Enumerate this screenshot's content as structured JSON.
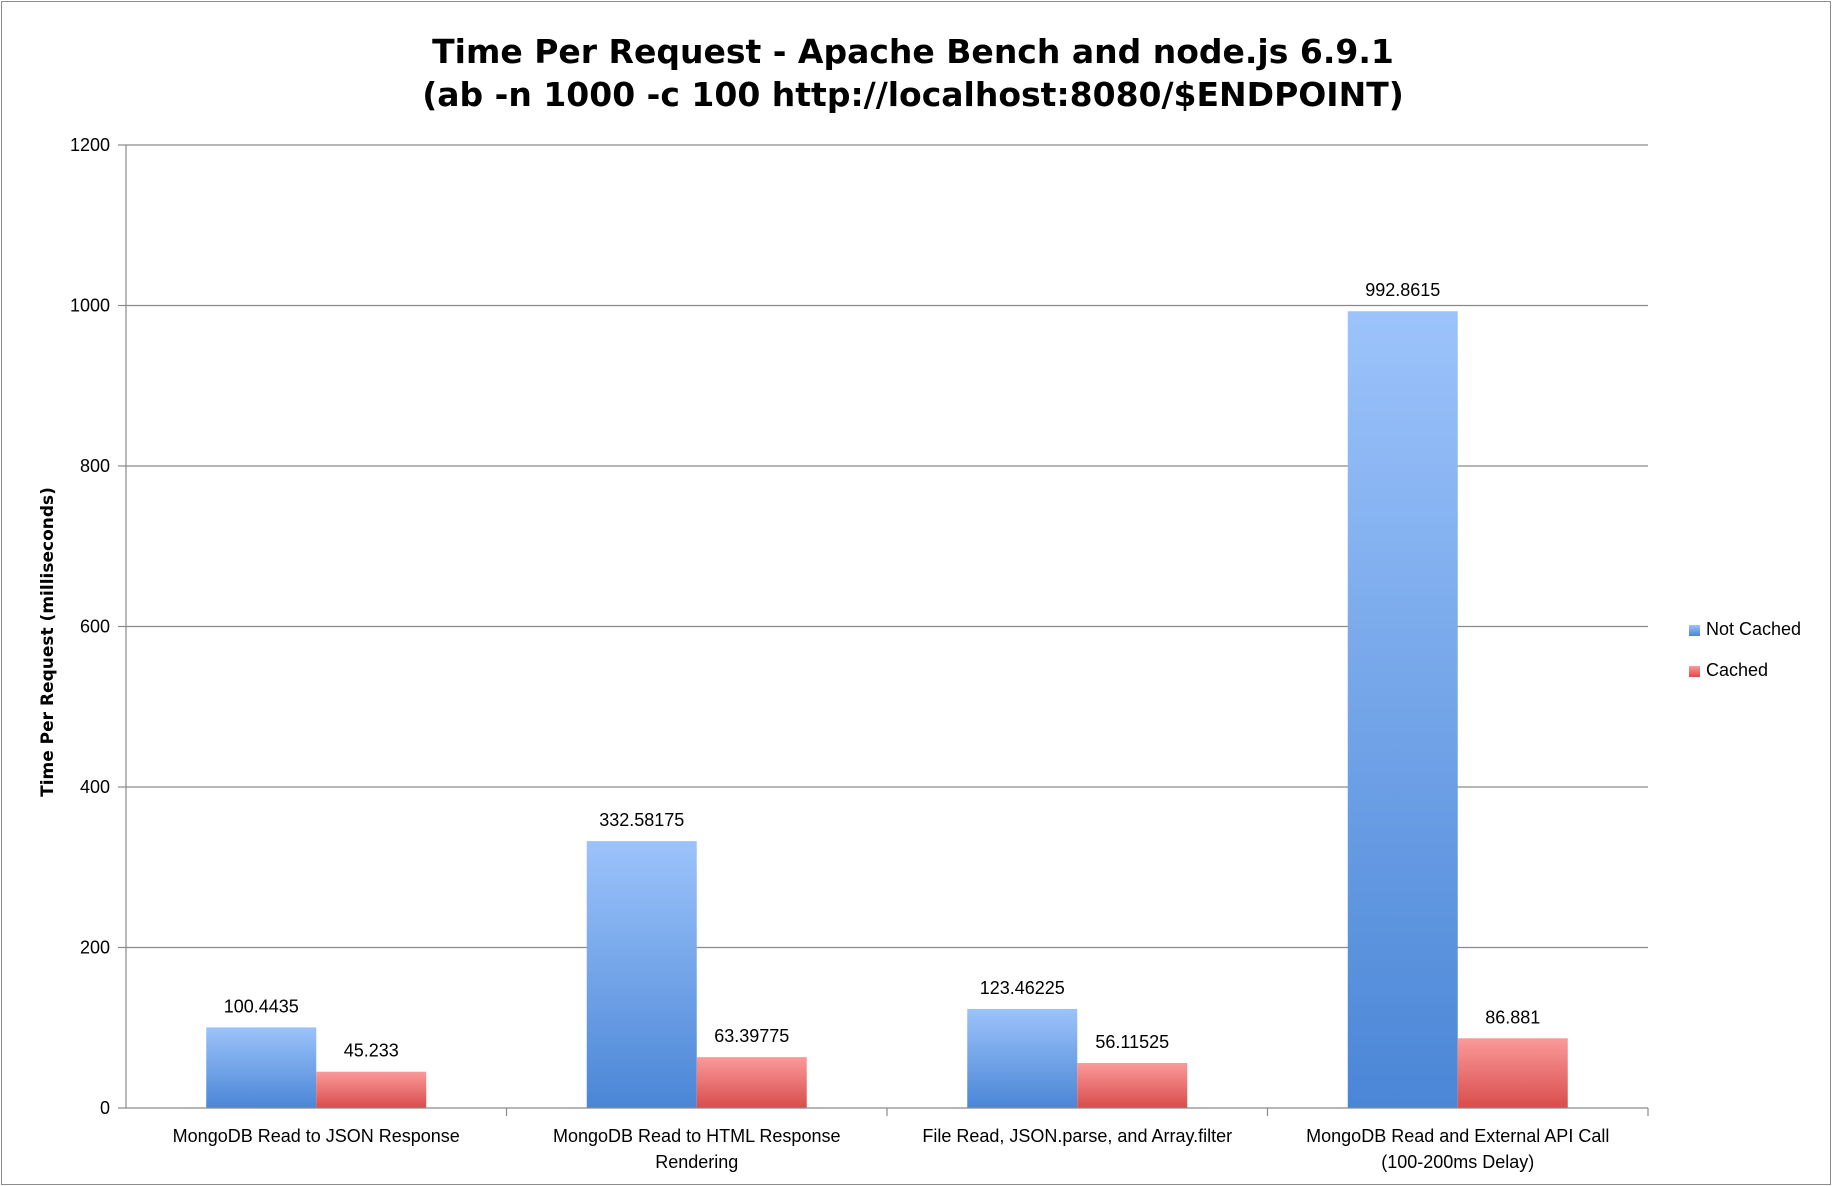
{
  "chart_data": {
    "type": "bar",
    "title": "Time Per Request - Apache Bench and node.js 6.9.1",
    "subtitle": "(ab -n 1000 -c 100 http://localhost:8080/$ENDPOINT)",
    "xlabel": "",
    "ylabel": "Time Per Request (milliseconds)",
    "ylim": [
      0,
      1200
    ],
    "yticks": [
      0,
      200,
      400,
      600,
      800,
      1000,
      1200
    ],
    "grid": true,
    "legend_position": "right",
    "categories": [
      [
        "MongoDB Read to JSON Response"
      ],
      [
        "MongoDB Read to HTML Response",
        "Rendering"
      ],
      [
        "File Read, JSON.parse, and Array.filter"
      ],
      [
        "MongoDB Read and External API Call",
        "(100-200ms  Delay)"
      ]
    ],
    "series": [
      {
        "name": "Not Cached",
        "color": "#4a86d6",
        "color_light": "#9cc3fb",
        "values": [
          100.4435,
          332.58175,
          123.46225,
          992.8615
        ],
        "labels": [
          "100.4435",
          "332.58175",
          "123.46225",
          "992.8615"
        ]
      },
      {
        "name": "Cached",
        "color": "#d94c4c",
        "color_light": "#fb9a9a",
        "values": [
          45.233,
          63.39775,
          56.11525,
          86.881
        ],
        "labels": [
          "45.233",
          "63.39775",
          "56.11525",
          "86.881"
        ]
      }
    ]
  }
}
